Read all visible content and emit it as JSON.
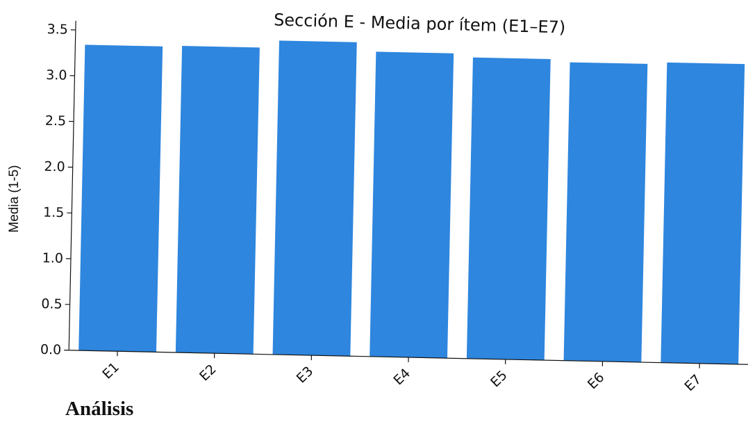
{
  "chart_data": {
    "type": "bar",
    "title": "Sección E - Media por ítem (E1–E7)",
    "xlabel": "",
    "ylabel": "Media (1-5)",
    "categories": [
      "E1",
      "E2",
      "E3",
      "E4",
      "E5",
      "E6",
      "E7"
    ],
    "values": [
      3.34,
      3.35,
      3.43,
      3.33,
      3.29,
      3.26,
      3.28
    ],
    "ylim": [
      0,
      3.6
    ],
    "yticks": [
      "0.0",
      "0.5",
      "1.0",
      "1.5",
      "2.0",
      "2.5",
      "3.0",
      "3.5"
    ],
    "grid": false,
    "bar_color": "#2e86de"
  },
  "section_heading": "Análisis"
}
